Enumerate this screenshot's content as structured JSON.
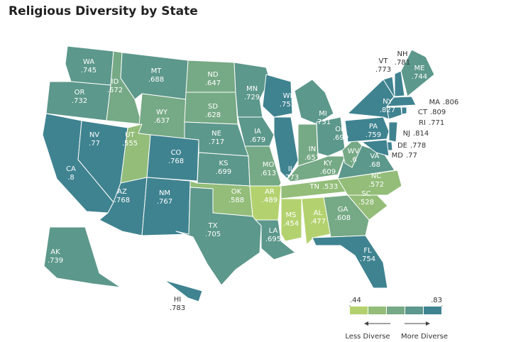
{
  "chart_data": {
    "type": "choropleth",
    "title": "Religious Diversity by State",
    "categories": [
      "WA",
      "OR",
      "CA",
      "NV",
      "ID",
      "MT",
      "WY",
      "UT",
      "AZ",
      "CO",
      "NM",
      "ND",
      "SD",
      "NE",
      "KS",
      "OK",
      "TX",
      "MN",
      "IA",
      "MO",
      "AR",
      "LA",
      "WI",
      "IL",
      "MI",
      "IN",
      "OH",
      "KY",
      "TN",
      "MS",
      "AL",
      "GA",
      "FL",
      "SC",
      "NC",
      "VA",
      "WV",
      "PA",
      "NY",
      "VT",
      "NH",
      "ME",
      "MA",
      "CT",
      "RI",
      "NJ",
      "DE",
      "MD",
      "AK",
      "HI"
    ],
    "values": [
      0.745,
      0.732,
      0.8,
      0.77,
      0.672,
      0.688,
      0.637,
      0.555,
      0.768,
      0.768,
      0.767,
      0.647,
      0.628,
      0.717,
      0.699,
      0.588,
      0.705,
      0.729,
      0.679,
      0.613,
      0.489,
      0.695,
      0.752,
      0.773,
      0.731,
      0.651,
      0.699,
      0.609,
      0.533,
      0.454,
      0.477,
      0.608,
      0.754,
      0.528,
      0.572,
      0.68,
      0.6,
      0.759,
      0.827,
      0.773,
      0.781,
      0.744,
      0.806,
      0.809,
      0.771,
      0.814,
      0.778,
      0.77,
      0.739,
      0.783
    ],
    "value_labels": [
      ".745",
      ".732",
      ".8",
      ".77",
      ".672",
      ".688",
      ".637",
      ".555",
      ".768",
      ".768",
      ".767",
      ".647",
      ".628",
      ".717",
      ".699",
      ".588",
      ".705",
      ".729",
      ".679",
      ".613",
      ".489",
      ".695",
      ".752",
      ".773",
      ".731",
      ".651",
      ".699",
      ".609",
      ".533",
      ".454",
      ".477",
      ".608",
      ".754",
      ".528",
      ".572",
      ".68",
      ".6",
      ".759",
      ".827",
      ".773",
      ".781",
      ".744",
      ".806",
      ".809",
      ".771",
      ".814",
      ".778",
      ".77",
      ".739",
      ".783"
    ],
    "legend": {
      "colors": [
        "#b3d26f",
        "#93bd79",
        "#76a985",
        "#5c988b",
        "#3f8390"
      ],
      "ticks": [
        {
          "value": 0.44,
          "label": ".44"
        },
        {
          "value": 0.83,
          "label": ".83"
        }
      ],
      "low_label": "Less Diverse",
      "high_label": "More Diverse"
    }
  }
}
